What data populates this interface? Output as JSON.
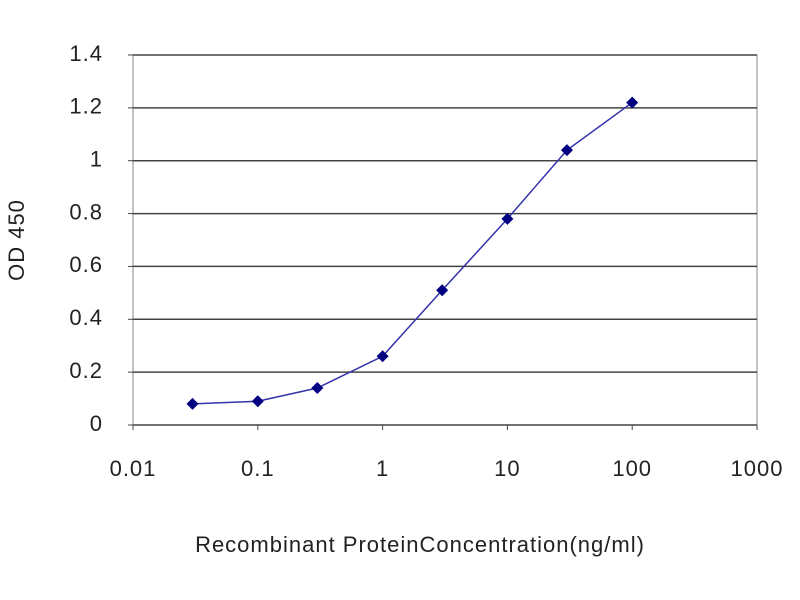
{
  "chart_data": {
    "type": "line",
    "x_label": "Recombinant ProteinConcentration(ng/ml)",
    "y_label": "OD 450",
    "x": [
      0.03,
      0.1,
      0.3,
      1,
      3,
      10,
      30,
      100
    ],
    "series": [
      {
        "color": "#3333aa",
        "marker_color": "#000080",
        "values": [
          0.08,
          0.09,
          0.14,
          0.26,
          0.51,
          0.78,
          1.04,
          1.22
        ]
      }
    ],
    "xscale": "log",
    "xlim": [
      0.01,
      1000
    ],
    "xticks": [
      0.01,
      0.1,
      1,
      10,
      100,
      1000
    ],
    "ylim": [
      0,
      1.4
    ],
    "yticks": [
      0,
      0.2,
      0.4,
      0.6,
      0.8,
      1,
      1.2,
      1.4
    ],
    "grid": true
  }
}
